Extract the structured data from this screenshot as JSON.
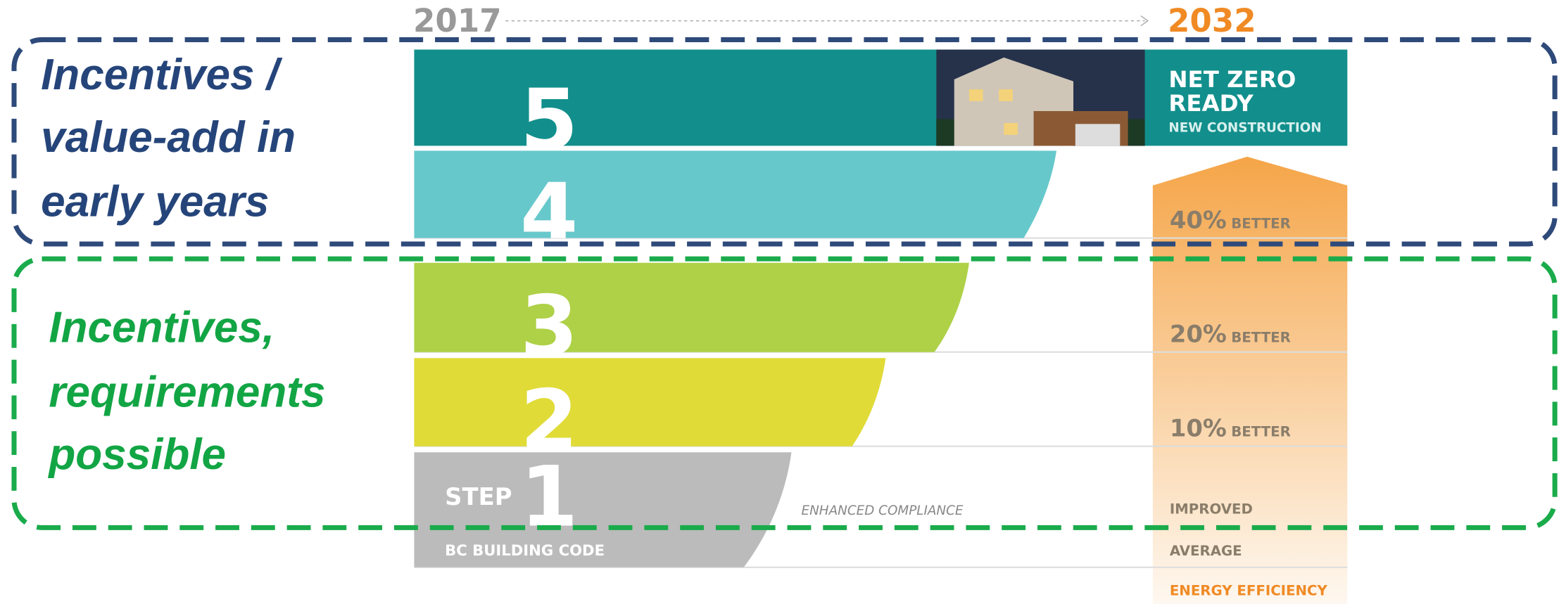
{
  "timeline": {
    "start": "2017",
    "end": "2032"
  },
  "callouts": [
    {
      "lines": [
        "Incentives /",
        "value-add in",
        "early years"
      ]
    },
    {
      "lines": [
        "Incentives,",
        "requirements",
        "possible"
      ]
    }
  ],
  "steps": [
    {
      "number": "5"
    },
    {
      "number": "4"
    },
    {
      "number": "3"
    },
    {
      "number": "2"
    },
    {
      "number": "1"
    }
  ],
  "step_word": "STEP",
  "base_label": "BC BUILDING CODE",
  "middle_label": "ENHANCED COMPLIANCE",
  "top_box": {
    "title_lines": [
      "NET ZERO",
      "READY"
    ],
    "subtitle": "NEW CONSTRUCTION"
  },
  "arrow_labels": [
    {
      "percent": "40%",
      "word": "BETTER"
    },
    {
      "percent": "20%",
      "word": "BETTER"
    },
    {
      "percent": "10%",
      "word": "BETTER"
    }
  ],
  "arrow_footer": [
    "IMPROVED",
    "AVERAGE",
    "ENERGY EFFICIENCY"
  ]
}
